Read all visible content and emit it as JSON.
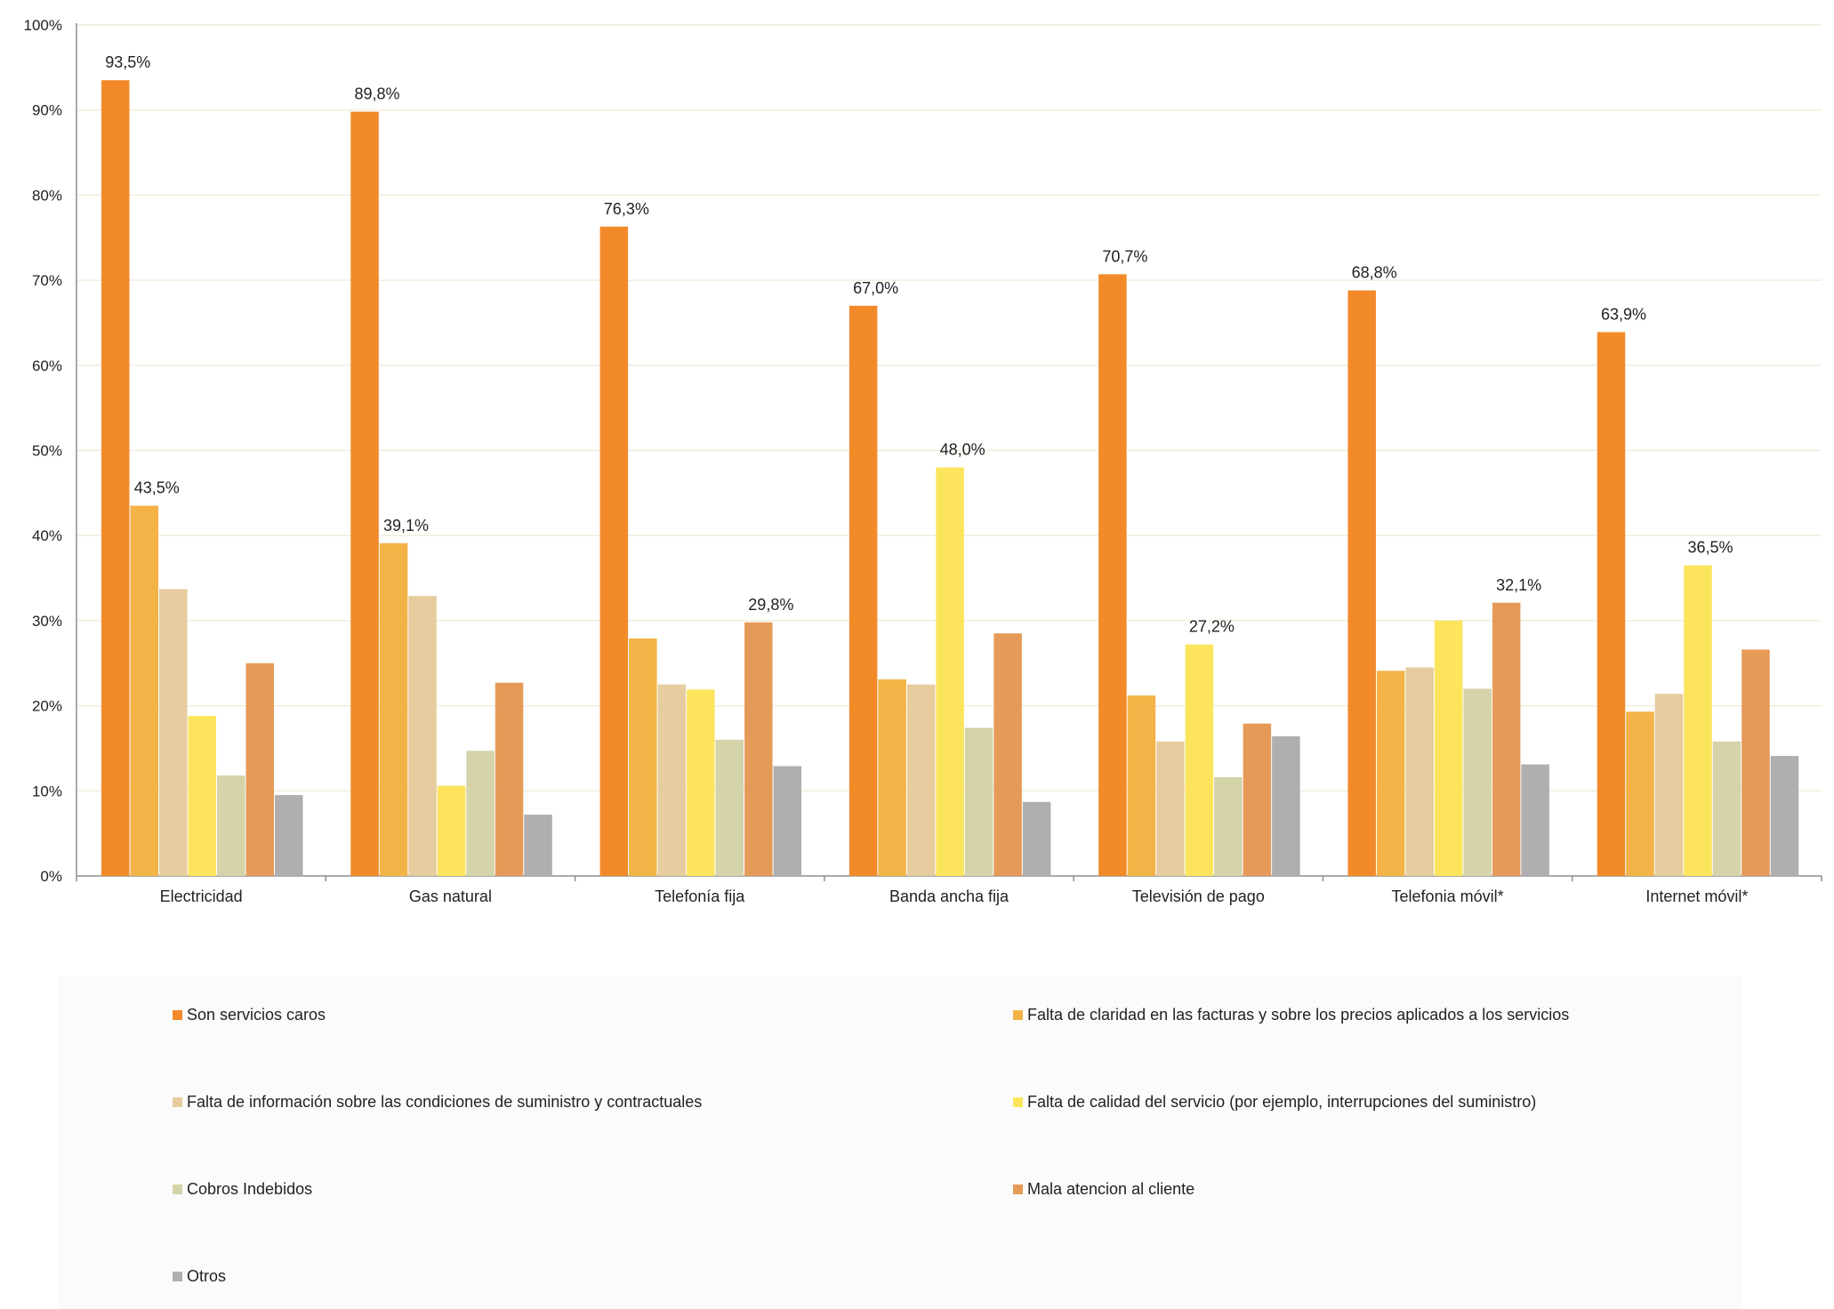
{
  "chart_data": {
    "type": "bar",
    "title": "",
    "xlabel": "",
    "ylabel": "",
    "ylim": [
      0,
      100
    ],
    "yticks": [
      "0%",
      "10%",
      "20%",
      "30%",
      "40%",
      "50%",
      "60%",
      "70%",
      "80%",
      "90%",
      "100%"
    ],
    "grid": true,
    "legend_position": "bottom",
    "categories": [
      "Electricidad",
      "Gas natural",
      "Telefonía fija",
      "Banda ancha fija",
      "Televisión de pago",
      "Telefonia móvil*",
      "Internet móvil*"
    ],
    "series": [
      {
        "name": "Son servicios caros",
        "color": "#F28A2A",
        "values": [
          93.5,
          89.8,
          76.3,
          67.0,
          70.7,
          68.8,
          63.9
        ]
      },
      {
        "name": "Falta de claridad en las facturas y sobre los precios aplicados a los servicios",
        "color": "#F3B346",
        "values": [
          43.5,
          39.1,
          27.9,
          23.1,
          21.2,
          24.1,
          19.3
        ]
      },
      {
        "name": "Falta de información sobre las condiciones de suministro y contractuales",
        "color": "#E6CC9E",
        "values": [
          33.7,
          32.9,
          22.5,
          22.5,
          15.8,
          24.5,
          21.4
        ]
      },
      {
        "name": "Falta de calidad del servicio (por ejemplo, interrupciones del suministro)",
        "color": "#FCE55D",
        "values": [
          18.8,
          10.6,
          21.9,
          48.0,
          27.2,
          30.0,
          36.5
        ]
      },
      {
        "name": "Cobros Indebidos",
        "color": "#D4D3A9",
        "values": [
          11.8,
          14.7,
          16.0,
          17.4,
          11.6,
          22.0,
          15.8
        ]
      },
      {
        "name": "Mala atencion al cliente",
        "color": "#E69A58",
        "values": [
          25.0,
          22.7,
          29.8,
          28.5,
          17.9,
          32.1,
          26.6
        ]
      },
      {
        "name": "Otros",
        "color": "#B0AEAE",
        "values": [
          9.5,
          7.2,
          12.9,
          8.7,
          16.4,
          13.1,
          14.1
        ]
      }
    ],
    "data_labels": [
      {
        "category": "Electricidad",
        "series": "Son servicios caros",
        "text": "93,5%"
      },
      {
        "category": "Electricidad",
        "series": "Falta de claridad en las facturas y sobre los precios aplicados a los servicios",
        "text": "43,5%"
      },
      {
        "category": "Gas natural",
        "series": "Son servicios caros",
        "text": "89,8%"
      },
      {
        "category": "Gas natural",
        "series": "Falta de claridad en las facturas y sobre los precios aplicados a los servicios",
        "text": "39,1%"
      },
      {
        "category": "Telefonía fija",
        "series": "Son servicios caros",
        "text": "76,3%"
      },
      {
        "category": "Telefonía fija",
        "series": "Mala atencion al cliente",
        "text": "29,8%"
      },
      {
        "category": "Banda ancha fija",
        "series": "Son servicios caros",
        "text": "67,0%"
      },
      {
        "category": "Banda ancha fija",
        "series": "Falta de calidad del servicio (por ejemplo, interrupciones del suministro)",
        "text": "48,0%"
      },
      {
        "category": "Televisión de pago",
        "series": "Son servicios caros",
        "text": "70,7%"
      },
      {
        "category": "Televisión de pago",
        "series": "Falta de calidad del servicio (por ejemplo, interrupciones del suministro)",
        "text": "27,2%"
      },
      {
        "category": "Telefonia móvil*",
        "series": "Son servicios caros",
        "text": "68,8%"
      },
      {
        "category": "Telefonia móvil*",
        "series": "Mala atencion al cliente",
        "text": "32,1%"
      },
      {
        "category": "Internet móvil*",
        "series": "Son servicios caros",
        "text": "63,9%"
      },
      {
        "category": "Internet móvil*",
        "series": "Falta de calidad del servicio (por ejemplo, interrupciones del suministro)",
        "text": "36,5%"
      }
    ]
  },
  "legend": {
    "items": [
      {
        "label": "Son servicios caros",
        "color": "#F28A2A"
      },
      {
        "label": "Falta de claridad en las facturas y sobre los precios aplicados a los servicios",
        "color": "#F3B346"
      },
      {
        "label": "Falta de información sobre las condiciones de suministro y contractuales",
        "color": "#E6CC9E"
      },
      {
        "label": "Falta de calidad del servicio (por ejemplo, interrupciones del suministro)",
        "color": "#FCE55D"
      },
      {
        "label": "Cobros Indebidos",
        "color": "#D4D3A9"
      },
      {
        "label": "Mala atencion al cliente",
        "color": "#E69A58"
      },
      {
        "label": "Otros",
        "color": "#B0AEAE"
      }
    ]
  }
}
